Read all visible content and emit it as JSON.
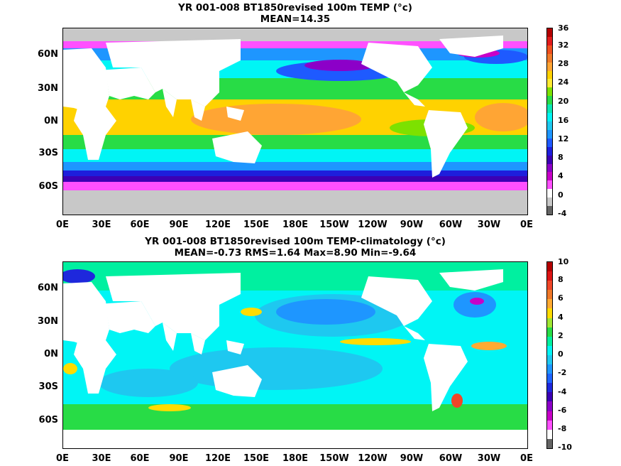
{
  "panels": [
    {
      "title_line1": "YR 001-008 BT1850revised 100m TEMP (°c)",
      "title_line2": "MEAN=14.35",
      "colorbar_labels": [
        "36",
        "32",
        "28",
        "24",
        "20",
        "16",
        "12",
        "8",
        "4",
        "0",
        "-4"
      ],
      "colorbar_colors": [
        "#b40000",
        "#e21b1b",
        "#f0501e",
        "#f07a28",
        "#ffa534",
        "#ffd200",
        "#ffeb32",
        "#7de100",
        "#28dc46",
        "#0ae7b4",
        "#00f5f5",
        "#1ec8f0",
        "#1e96ff",
        "#1e5aff",
        "#1e1edc",
        "#3c00b4",
        "#8c00c8",
        "#c800c8",
        "#ff50ff",
        "#ffffff",
        "#c8c8c8",
        "#646464"
      ],
      "y_labels": [
        "60N",
        "30N",
        "0N",
        "30S",
        "60S"
      ],
      "x_labels": [
        "0E",
        "30E",
        "60E",
        "90E",
        "120E",
        "150E",
        "180E",
        "150W",
        "120W",
        "90W",
        "60W",
        "30W",
        "0E"
      ]
    },
    {
      "title_line1": "YR 001-008 BT1850revised 100m TEMP-climatology (°c)",
      "title_line2": "MEAN=-0.73   RMS=1.64   Max=8.90   Min=-9.64",
      "colorbar_labels": [
        "10",
        "8",
        "6",
        "4",
        "2",
        "0",
        "-2",
        "-4",
        "-6",
        "-8",
        "-10"
      ],
      "colorbar_colors": [
        "#b40000",
        "#dc1414",
        "#f04628",
        "#f07828",
        "#ffaa32",
        "#ffdc00",
        "#a0e632",
        "#28dc46",
        "#00f0a0",
        "#00f5f5",
        "#1ec8f0",
        "#1e96ff",
        "#1e64ff",
        "#1e28dc",
        "#3c00b4",
        "#8c00c8",
        "#c800c8",
        "#ff50ff",
        "#ffffff",
        "#646464"
      ],
      "y_labels": [
        "60N",
        "30N",
        "0N",
        "30S",
        "60S"
      ],
      "x_labels": [
        "0E",
        "30E",
        "60E",
        "90E",
        "120E",
        "150E",
        "180E",
        "150W",
        "120W",
        "90W",
        "60W",
        "30W",
        "0E"
      ]
    }
  ]
}
